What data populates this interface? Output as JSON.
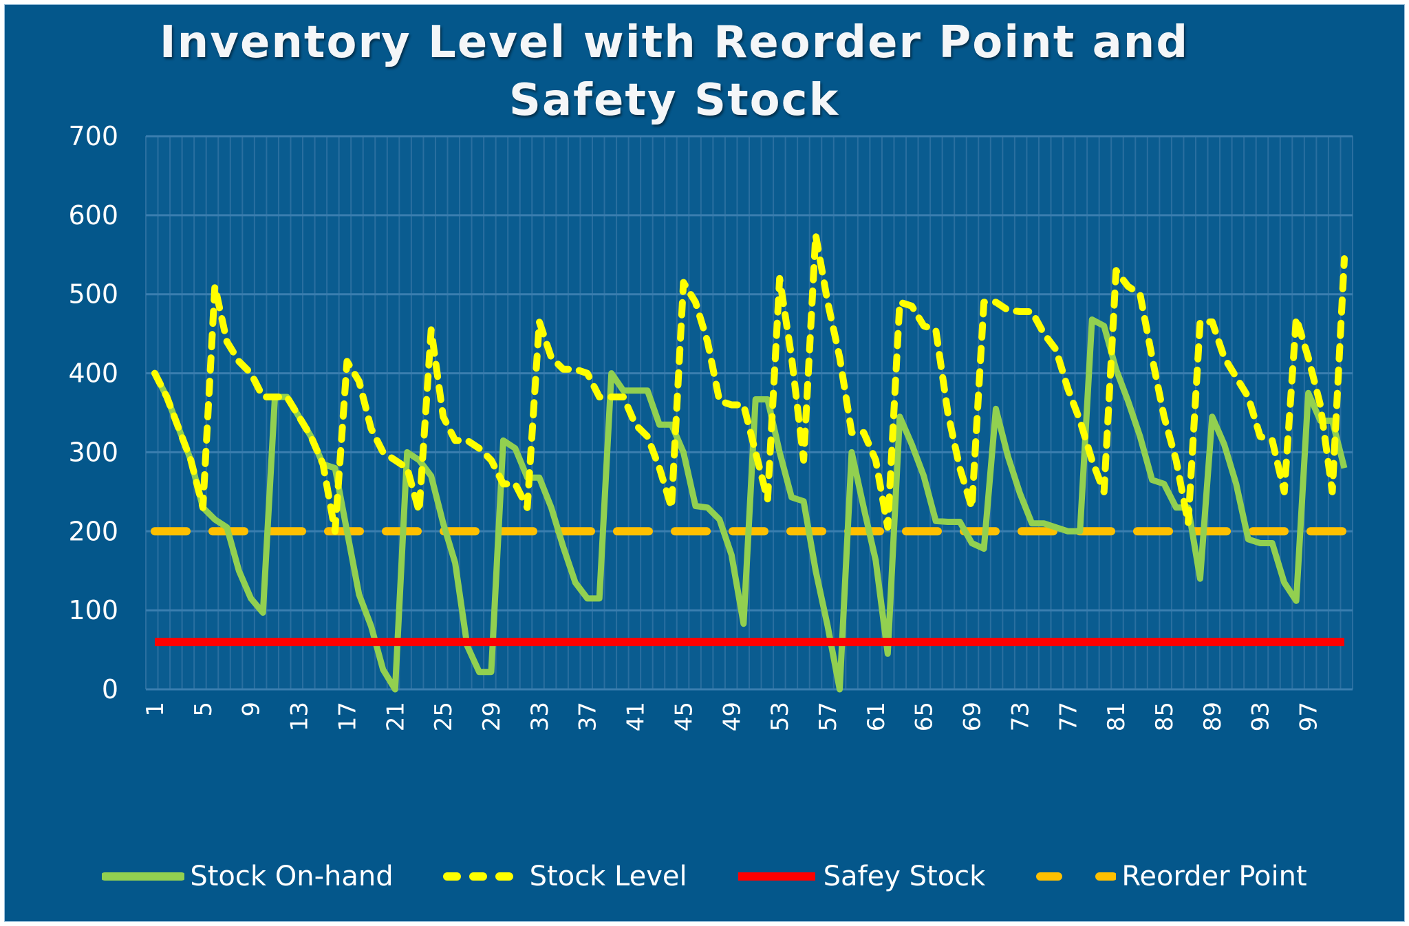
{
  "chart_data": {
    "type": "line",
    "title": "Inventory Level with Reorder Point and Safety Stock",
    "title_lines": [
      "Inventory Level with Reorder Point and",
      "Safety Stock"
    ],
    "xlabel": "",
    "ylabel": "",
    "ylim": [
      0,
      700
    ],
    "yticks": [
      0,
      100,
      200,
      300,
      400,
      500,
      600,
      700
    ],
    "xticks": [
      1,
      5,
      9,
      13,
      17,
      21,
      25,
      29,
      33,
      37,
      41,
      45,
      49,
      53,
      57,
      61,
      65,
      69,
      73,
      77,
      81,
      85,
      89,
      93,
      97
    ],
    "x_count": 100,
    "grid": true,
    "legend_position": "bottom",
    "series": [
      {
        "name": "Stock On-hand",
        "style": "solid",
        "color": "#92D050",
        "values": [
          400,
          370,
          330,
          290,
          230,
          215,
          205,
          150,
          115,
          97,
          370,
          370,
          345,
          320,
          285,
          280,
          200,
          120,
          80,
          25,
          0,
          300,
          290,
          270,
          210,
          160,
          55,
          22,
          22,
          315,
          305,
          268,
          268,
          230,
          180,
          135,
          115,
          115,
          400,
          378,
          378,
          378,
          335,
          335,
          300,
          232,
          230,
          215,
          170,
          83,
          367,
          367,
          300,
          243,
          238,
          150,
          80,
          0,
          300,
          230,
          163,
          45,
          345,
          310,
          270,
          213,
          212,
          212,
          185,
          178,
          355,
          295,
          248,
          210,
          210,
          205,
          200,
          200,
          468,
          460,
          405,
          365,
          320,
          265,
          260,
          230,
          230,
          140,
          345,
          310,
          260,
          190,
          185,
          185,
          135,
          112,
          375,
          340,
          340,
          280
        ]
      },
      {
        "name": "Stock Level",
        "style": "dashed",
        "color": "#FFFF00",
        "values": [
          400,
          370,
          330,
          290,
          230,
          510,
          440,
          415,
          400,
          370,
          370,
          370,
          345,
          320,
          285,
          200,
          415,
          390,
          330,
          300,
          290,
          280,
          225,
          455,
          345,
          315,
          315,
          305,
          290,
          260,
          260,
          230,
          465,
          420,
          405,
          405,
          400,
          370,
          370,
          370,
          335,
          320,
          280,
          230,
          515,
          490,
          440,
          365,
          360,
          360,
          300,
          240,
          520,
          420,
          290,
          575,
          490,
          420,
          325,
          325,
          290,
          205,
          490,
          485,
          460,
          455,
          350,
          280,
          230,
          490,
          490,
          480,
          478,
          478,
          450,
          430,
          380,
          340,
          290,
          250,
          530,
          510,
          500,
          420,
          345,
          290,
          210,
          465,
          465,
          420,
          395,
          370,
          320,
          315,
          250,
          470,
          420,
          360,
          250,
          545
        ]
      },
      {
        "name": "Safey Stock",
        "style": "solid",
        "color": "#FF0000",
        "values_constant": 60
      },
      {
        "name": "Reorder Point",
        "style": "dashed",
        "color": "#FFC000",
        "values_constant": 200
      }
    ]
  },
  "colors": {
    "background": "#04578B",
    "gridline": "#2C74A5",
    "text": "#FFFFFF"
  },
  "legend": {
    "items": [
      {
        "label": "Stock On-hand",
        "color": "#92D050",
        "style": "solid"
      },
      {
        "label": "Stock Level",
        "color": "#FFFF00",
        "style": "dashed"
      },
      {
        "label": "Safey Stock",
        "color": "#FF0000",
        "style": "solid"
      },
      {
        "label": "Reorder Point",
        "color": "#FFC000",
        "style": "dashed"
      }
    ]
  }
}
